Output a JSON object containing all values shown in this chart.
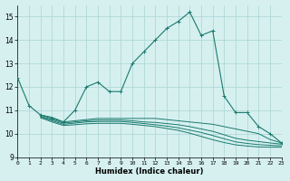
{
  "title": "",
  "xlabel": "Humidex (Indice chaleur)",
  "bg_color": "#d6f0f0",
  "line_color": "#1a7a6e",
  "grid_color": "#b0d8d8",
  "xlim": [
    0,
    23
  ],
  "ylim": [
    9,
    15.5
  ],
  "yticks": [
    9,
    10,
    11,
    12,
    13,
    14,
    15
  ],
  "xticks": [
    0,
    1,
    2,
    3,
    4,
    5,
    6,
    7,
    8,
    9,
    10,
    11,
    12,
    13,
    14,
    15,
    16,
    17,
    18,
    19,
    20,
    21,
    22,
    23
  ],
  "main_line": {
    "x": [
      0,
      1,
      2,
      3,
      4,
      5,
      6,
      7,
      8,
      9,
      10,
      11,
      12,
      13,
      14,
      15,
      16,
      17,
      18,
      19,
      20,
      21,
      22,
      23
    ],
    "y": [
      12.4,
      11.2,
      10.8,
      10.65,
      10.5,
      11.0,
      12.0,
      12.2,
      11.8,
      11.8,
      13.0,
      13.5,
      14.0,
      14.5,
      14.8,
      15.2,
      14.2,
      14.4,
      11.6,
      10.9,
      10.9,
      10.3,
      10.0,
      9.6
    ]
  },
  "lower_lines": [
    {
      "x": [
        2,
        3,
        4,
        5,
        6,
        7,
        8,
        9,
        10,
        11,
        12,
        13,
        14,
        15,
        16,
        17,
        18,
        19,
        20,
        21,
        22,
        23
      ],
      "y": [
        10.8,
        10.7,
        10.5,
        10.55,
        10.6,
        10.65,
        10.65,
        10.65,
        10.65,
        10.65,
        10.65,
        10.6,
        10.55,
        10.5,
        10.45,
        10.4,
        10.3,
        10.2,
        10.1,
        10.0,
        9.75,
        9.6
      ]
    },
    {
      "x": [
        2,
        3,
        4,
        5,
        6,
        7,
        8,
        9,
        10,
        11,
        12,
        13,
        14,
        15,
        16,
        17,
        18,
        19,
        20,
        21,
        22,
        23
      ],
      "y": [
        10.75,
        10.6,
        10.45,
        10.5,
        10.55,
        10.58,
        10.58,
        10.58,
        10.55,
        10.5,
        10.48,
        10.43,
        10.38,
        10.3,
        10.2,
        10.1,
        9.95,
        9.8,
        9.72,
        9.66,
        9.6,
        9.55
      ]
    },
    {
      "x": [
        2,
        3,
        4,
        5,
        6,
        7,
        8,
        9,
        10,
        11,
        12,
        13,
        14,
        15,
        16,
        17,
        18,
        19,
        20,
        21,
        22,
        23
      ],
      "y": [
        10.72,
        10.55,
        10.4,
        10.45,
        10.5,
        10.52,
        10.52,
        10.52,
        10.48,
        10.43,
        10.38,
        10.32,
        10.25,
        10.15,
        10.05,
        9.92,
        9.78,
        9.65,
        9.58,
        9.53,
        9.5,
        9.48
      ]
    },
    {
      "x": [
        2,
        3,
        4,
        5,
        6,
        7,
        8,
        9,
        10,
        11,
        12,
        13,
        14,
        15,
        16,
        17,
        18,
        19,
        20,
        21,
        22,
        23
      ],
      "y": [
        10.68,
        10.5,
        10.35,
        10.38,
        10.42,
        10.44,
        10.44,
        10.44,
        10.4,
        10.35,
        10.3,
        10.22,
        10.14,
        10.02,
        9.88,
        9.74,
        9.62,
        9.52,
        9.47,
        9.43,
        9.42,
        9.42
      ]
    }
  ]
}
